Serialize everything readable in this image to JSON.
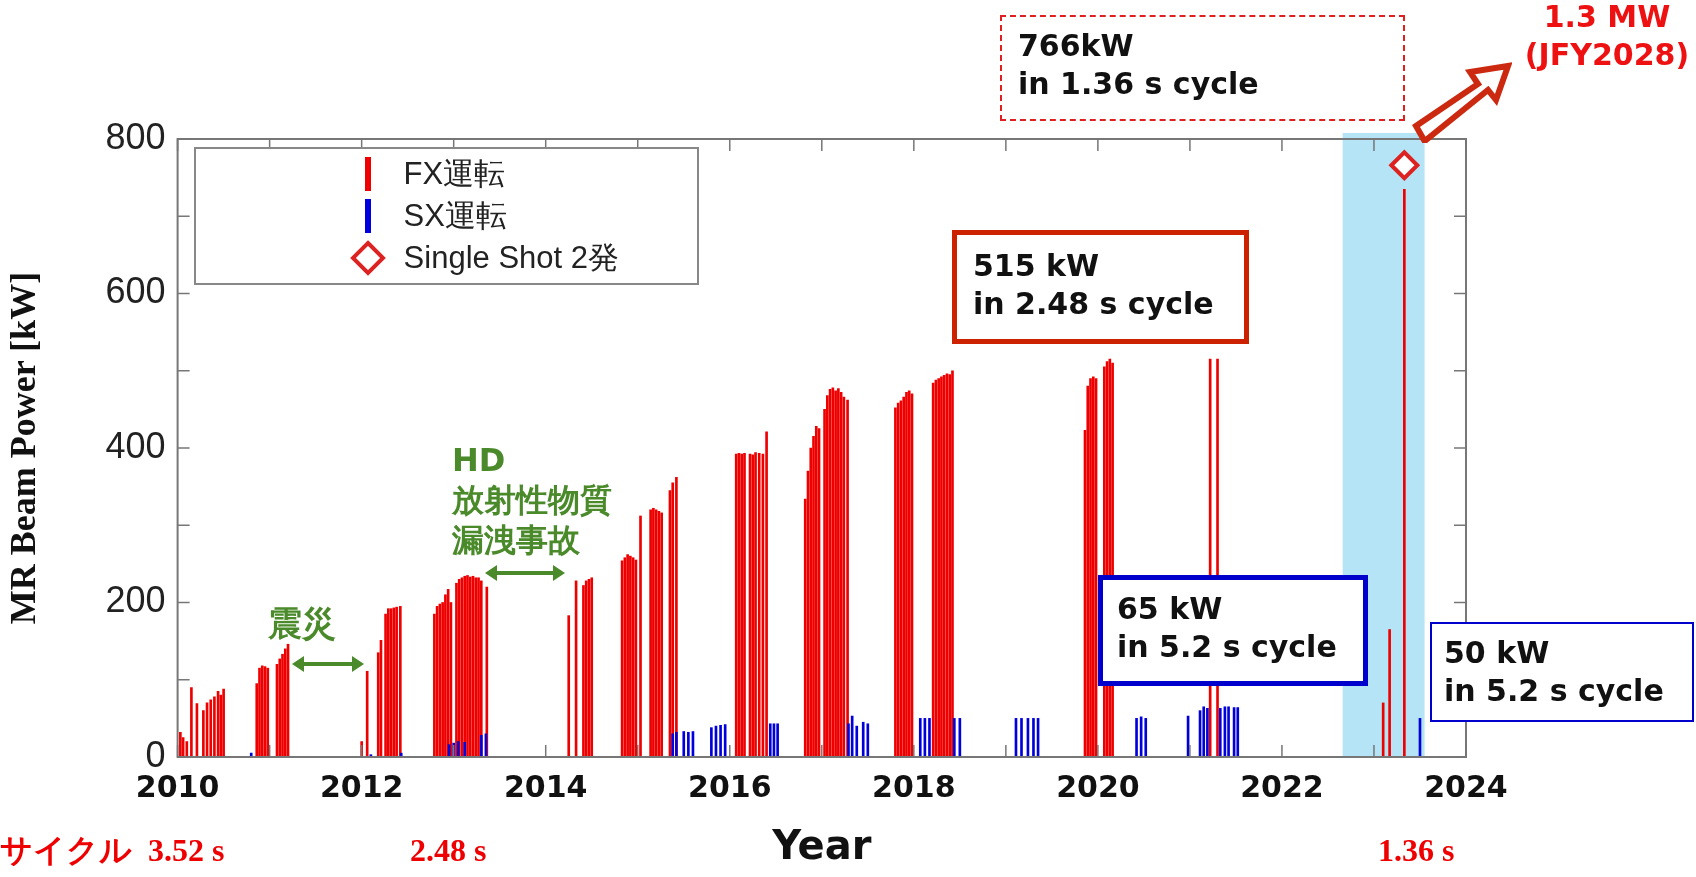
{
  "chart_data": {
    "type": "bar",
    "xlabel": "Year",
    "ylabel": "MR Beam Power [kW]",
    "xlim": [
      2010,
      2024
    ],
    "ylim": [
      0,
      800
    ],
    "xticks": [
      2010,
      {
        "value": 2011,
        "label": null
      },
      2012,
      {
        "value": 2013,
        "label": null
      },
      2014,
      {
        "value": 2015,
        "label": null
      },
      2016,
      {
        "value": 2017,
        "label": null
      },
      2018,
      {
        "value": 2019,
        "label": null
      },
      2020,
      {
        "value": 2021,
        "label": null
      },
      2022,
      {
        "value": 2023,
        "label": null
      },
      2024
    ],
    "yticks": [
      0,
      {
        "value": 100,
        "label": null
      },
      200,
      {
        "value": 300,
        "label": null
      },
      400,
      {
        "value": 500,
        "label": null
      },
      600,
      {
        "value": 700,
        "label": null
      },
      800
    ],
    "grid": false,
    "legend": "top left",
    "series": [
      {
        "name": "FX運転",
        "color": "#ee0000",
        "x": [
          2010.03,
          2010.06,
          2010.1,
          2010.15,
          2010.21,
          2010.28,
          2010.32,
          2010.36,
          2010.4,
          2010.44,
          2010.47,
          2010.5,
          2010.86,
          2010.89,
          2010.92,
          2010.95,
          2010.98,
          2011.08,
          2011.11,
          2011.14,
          2011.17,
          2011.2,
          2012.0,
          2012.06,
          2012.18,
          2012.21,
          2012.26,
          2012.29,
          2012.32,
          2012.35,
          2012.38,
          2012.42,
          2012.79,
          2012.82,
          2012.85,
          2012.88,
          2012.91,
          2012.94,
          2012.97,
          2013.03,
          2013.06,
          2013.09,
          2013.12,
          2013.15,
          2013.18,
          2013.21,
          2013.24,
          2013.27,
          2013.3,
          2013.36,
          2014.25,
          2014.33,
          2014.41,
          2014.44,
          2014.47,
          2014.5,
          2014.83,
          2014.86,
          2014.89,
          2014.92,
          2014.95,
          2014.98,
          2015.03,
          2015.14,
          2015.17,
          2015.2,
          2015.23,
          2015.26,
          2015.35,
          2015.38,
          2015.42,
          2016.07,
          2016.1,
          2016.13,
          2016.16,
          2016.22,
          2016.25,
          2016.28,
          2016.32,
          2016.36,
          2016.4,
          2016.82,
          2016.85,
          2016.88,
          2016.91,
          2016.94,
          2016.97,
          2017.03,
          2017.06,
          2017.09,
          2017.12,
          2017.15,
          2017.18,
          2017.21,
          2017.24,
          2017.28,
          2017.8,
          2017.83,
          2017.86,
          2017.89,
          2017.92,
          2017.95,
          2017.98,
          2018.21,
          2018.24,
          2018.27,
          2018.3,
          2018.33,
          2018.36,
          2018.39,
          2018.42,
          2019.86,
          2019.89,
          2019.92,
          2019.95,
          2019.98,
          2020.07,
          2020.1,
          2020.13,
          2020.16,
          2021.22,
          2021.3,
          2023.1,
          2023.17,
          2023.33
        ],
        "values": [
          32,
          25,
          20,
          90,
          69,
          60,
          70,
          74,
          78,
          85,
          80,
          88,
          95,
          115,
          118,
          117,
          115,
          120,
          127,
          133,
          140,
          146,
          20,
          111,
          135,
          151,
          185,
          192,
          192,
          193,
          194,
          195,
          185,
          195,
          198,
          200,
          210,
          217,
          200,
          225,
          230,
          232,
          234,
          235,
          233,
          234,
          232,
          232,
          228,
          220,
          183,
          228,
          222,
          228,
          230,
          232,
          254,
          258,
          262,
          260,
          258,
          255,
          312,
          320,
          322,
          320,
          318,
          316,
          345,
          355,
          362,
          392,
          393,
          392,
          393,
          392,
          391,
          394,
          393,
          392,
          421,
          334,
          370,
          400,
          415,
          428,
          425,
          450,
          468,
          476,
          478,
          474,
          477,
          472,
          466,
          462,
          452,
          458,
          461,
          466,
          472,
          474,
          470,
          484,
          488,
          490,
          492,
          494,
          496,
          495,
          500,
          423,
          480,
          490,
          492,
          490,
          505,
          512,
          515,
          510,
          515,
          515,
          70,
          165,
          735
        ]
      },
      {
        "name": "SX運転",
        "color": "#0000dd",
        "x": [
          2010.8,
          2012.1,
          2012.43,
          2012.95,
          2013.0,
          2013.05,
          2013.12,
          2013.3,
          2013.35,
          2015.38,
          2015.42,
          2015.5,
          2015.55,
          2015.6,
          2015.8,
          2015.85,
          2015.9,
          2015.95,
          2016.44,
          2016.48,
          2016.52,
          2017.29,
          2017.33,
          2017.38,
          2017.45,
          2017.5,
          2018.07,
          2018.12,
          2018.17,
          2018.44,
          2018.5,
          2019.11,
          2019.17,
          2019.24,
          2019.3,
          2019.35,
          2020.42,
          2020.47,
          2020.52,
          2020.98,
          2021.11,
          2021.15,
          2021.19,
          2021.33,
          2021.38,
          2021.42,
          2021.48,
          2021.52,
          2023.5
        ],
        "values": [
          5,
          3,
          5,
          16,
          18,
          20,
          19,
          28,
          30,
          30,
          32,
          33,
          32,
          33,
          38,
          40,
          41,
          42,
          43,
          43,
          43,
          43,
          53,
          40,
          45,
          43,
          50,
          50,
          50,
          50,
          50,
          50,
          50,
          50,
          50,
          50,
          50,
          52,
          50,
          53,
          60,
          65,
          63,
          63,
          65,
          65,
          64,
          64,
          50
        ]
      },
      {
        "name": "Single Shot 2発",
        "type": "scatter",
        "marker": "diamond",
        "color": "#dd2222",
        "x": [
          2023.33
        ],
        "values": [
          766
        ]
      }
    ],
    "bands": [
      {
        "axis": "x",
        "from": 2022.66,
        "to": 2023.55,
        "color": "#b4e4f5"
      }
    ],
    "annotations": [
      "766kW\nin 1.36 s cycle",
      "1.3 MW\n(JFY2028)",
      "515 kW\nin 2.48 s cycle",
      "65 kW\nin 5.2 s cycle",
      "50 kW\nin 5.2 s cycle",
      "震災",
      "HD",
      "放射性物質",
      "漏洩事故",
      "サイクル  3.52 s",
      "2.48 s",
      "1.36 s"
    ]
  }
}
